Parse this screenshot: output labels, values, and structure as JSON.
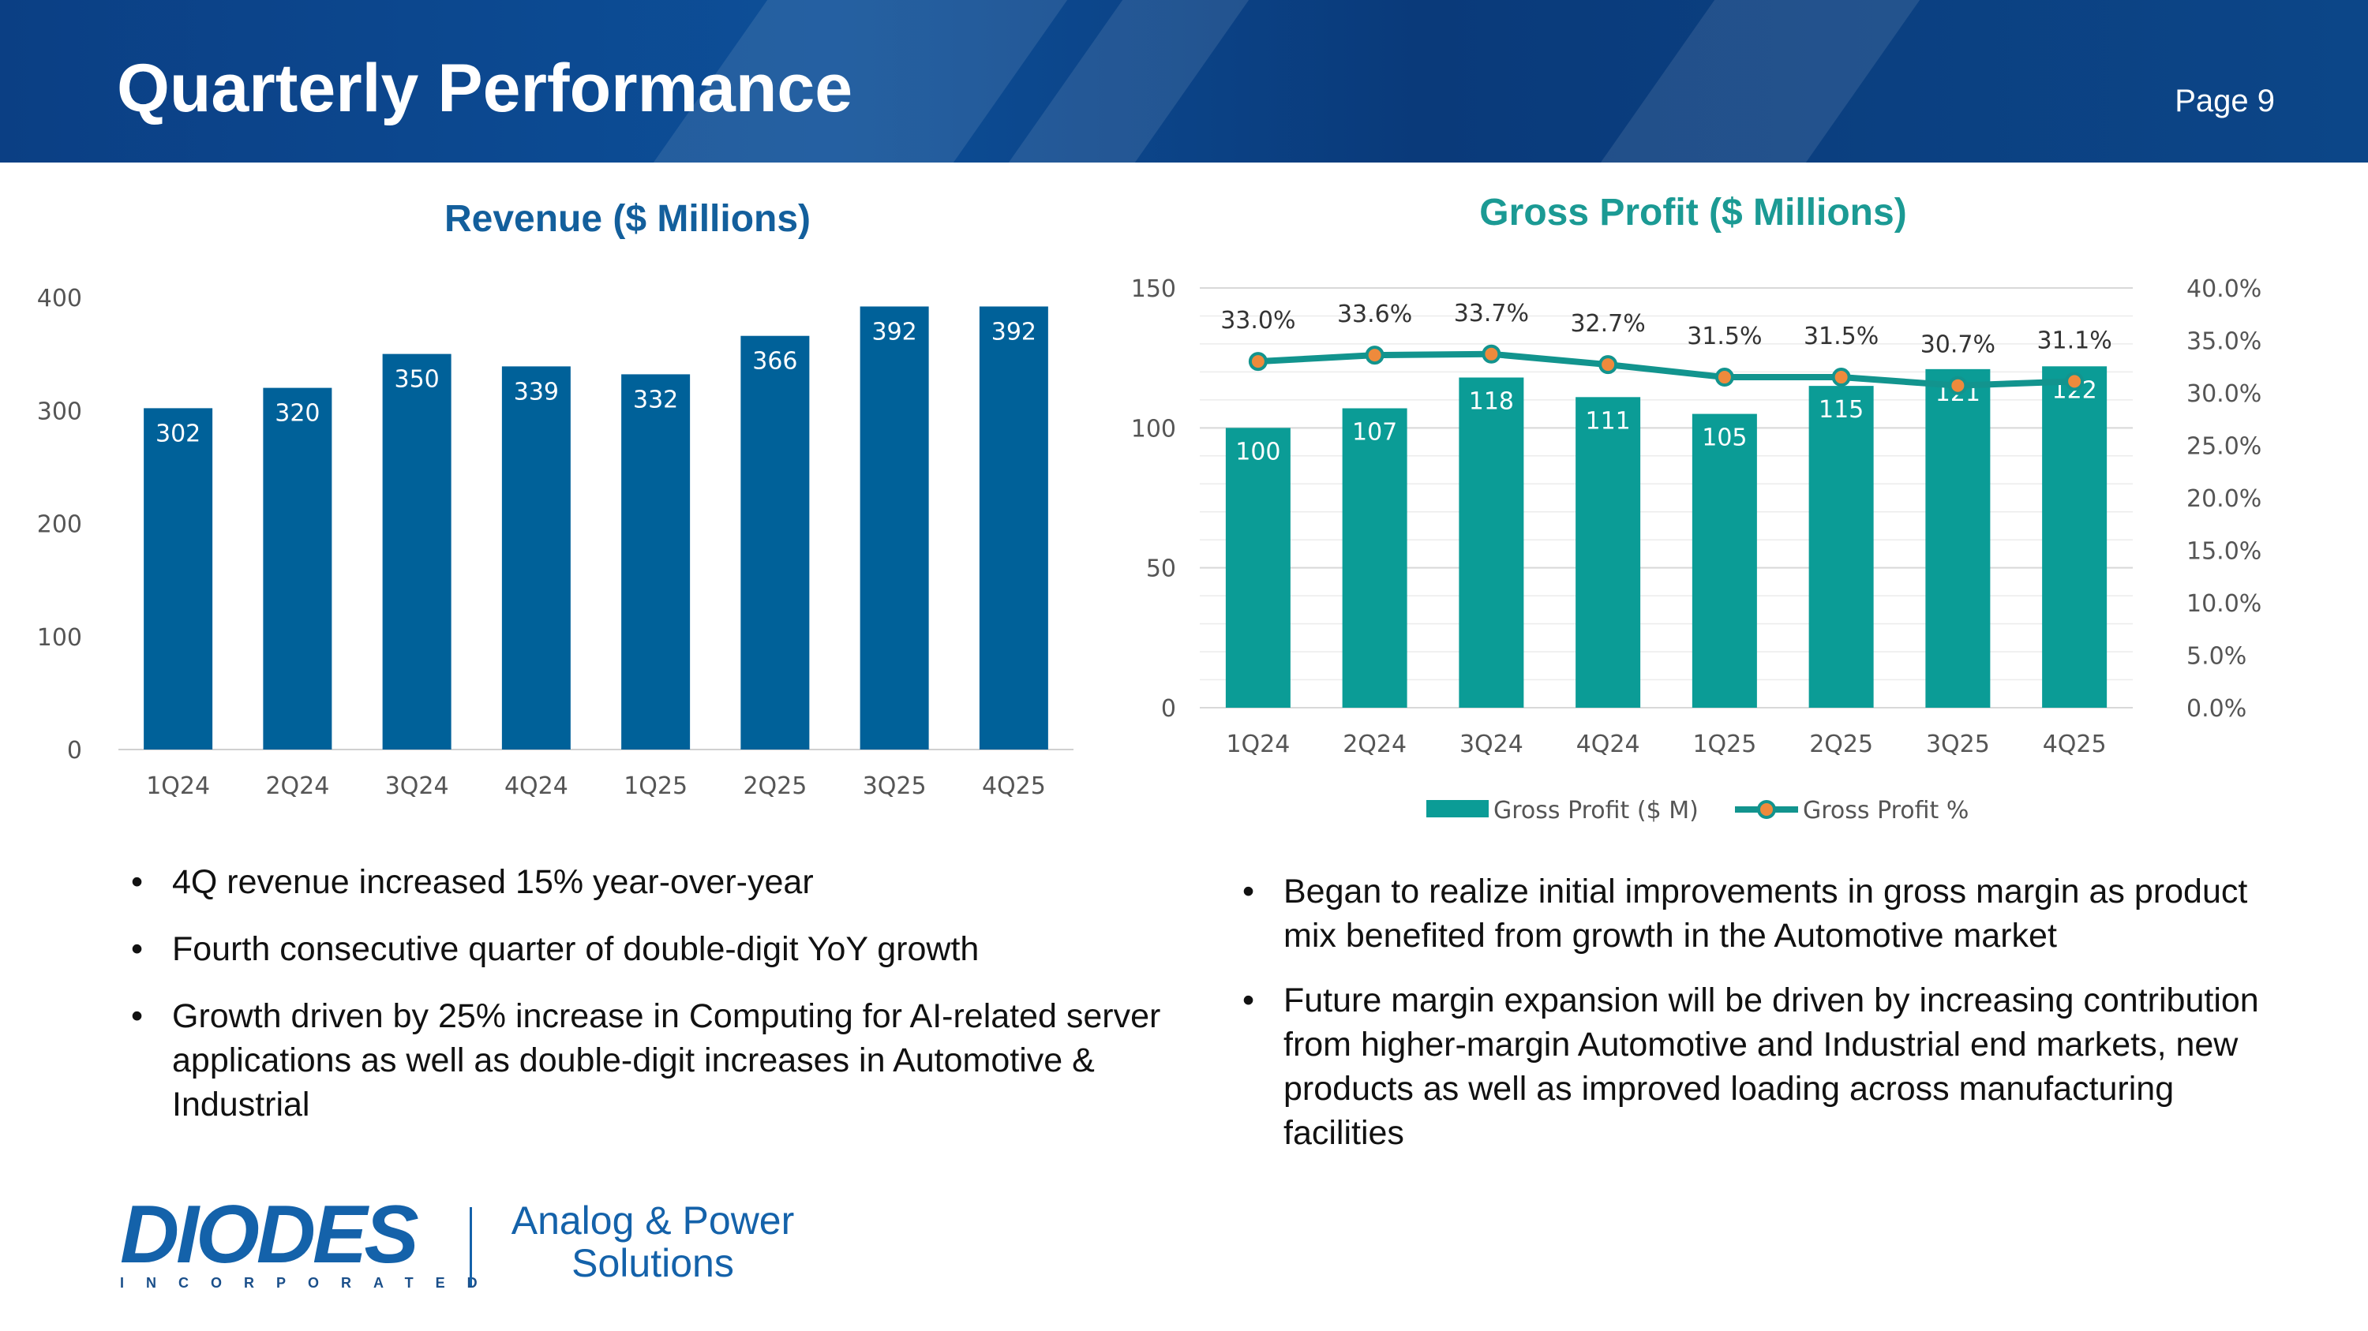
{
  "header": {
    "title": "Quarterly Performance",
    "page": "Page 9"
  },
  "chart_data": [
    {
      "type": "bar",
      "title": "Revenue ($ Millions)",
      "categories": [
        "1Q24",
        "2Q24",
        "3Q24",
        "4Q24",
        "1Q25",
        "2Q25",
        "3Q25",
        "4Q25"
      ],
      "values": [
        302,
        320,
        350,
        339,
        332,
        366,
        392,
        392
      ],
      "ylim": [
        0,
        400
      ],
      "yticks": [
        0,
        100,
        200,
        300,
        400
      ],
      "color": "#006199"
    },
    {
      "type": "bar+line",
      "title": "Gross Profit ($ Millions)",
      "categories": [
        "1Q24",
        "2Q24",
        "3Q24",
        "4Q24",
        "1Q25",
        "2Q25",
        "3Q25",
        "4Q25"
      ],
      "series": [
        {
          "name": "Gross Profit ($ M)",
          "type": "bar",
          "axis": "left",
          "values": [
            100,
            107,
            118,
            111,
            105,
            115,
            121,
            122
          ],
          "color": "#0b9c96"
        },
        {
          "name": "Gross Profit %",
          "type": "line",
          "axis": "right",
          "values": [
            33.0,
            33.6,
            33.7,
            32.7,
            31.5,
            31.5,
            30.7,
            31.1
          ],
          "labels": [
            "33.0%",
            "33.6%",
            "33.7%",
            "32.7%",
            "31.5%",
            "31.5%",
            "30.7%",
            "31.1%"
          ],
          "color": "#12948e",
          "marker_color": "#ee8a3c"
        }
      ],
      "ylim": [
        0,
        150
      ],
      "yticks": [
        0,
        50,
        100,
        150
      ],
      "y2lim": [
        0,
        40
      ],
      "y2ticks": [
        "0.0%",
        "5.0%",
        "10.0%",
        "15.0%",
        "20.0%",
        "25.0%",
        "30.0%",
        "35.0%",
        "40.0%"
      ],
      "legend": "bottom"
    }
  ],
  "revenue_bullets": [
    "4Q revenue increased 15% year-over-year",
    "Fourth consecutive quarter of double-digit YoY growth",
    "Growth driven by 25% increase in Computing for AI-related server applications as well as double-digit increases in Automotive & Industrial"
  ],
  "gross_profit_bullets": [
    "Began to realize initial improvements in gross margin as product mix benefited from growth in the Automotive market",
    "Future margin expansion will be driven by increasing contribution from higher-margin Automotive and Industrial end markets, new products as well as improved loading across manufacturing facilities"
  ],
  "footer": {
    "logo_word": "DIODES",
    "logo_sub": "INCORPORATED",
    "tagline": "Analog & Power Solutions"
  }
}
